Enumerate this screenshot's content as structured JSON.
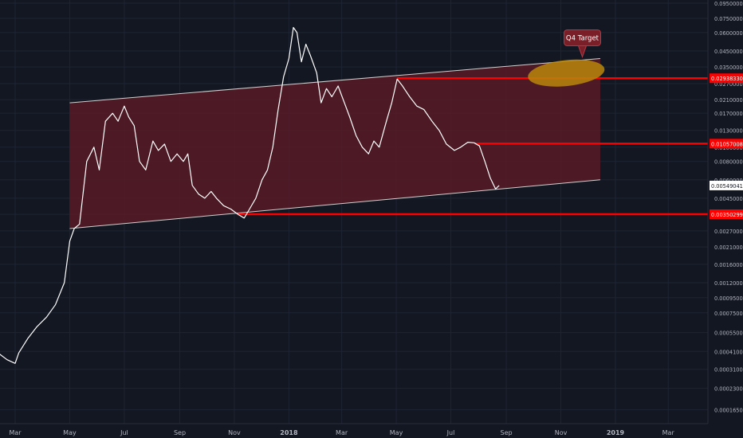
{
  "chart_data": {
    "type": "line",
    "y_scale": "log",
    "ylim": [
      0.00015,
      0.095
    ],
    "grid": true,
    "x_tick_labels": [
      "Mar",
      "May",
      "Jul",
      "Sep",
      "Nov",
      "2018",
      "Mar",
      "May",
      "Jul",
      "Sep",
      "Nov",
      "2019",
      "Mar"
    ],
    "y_tick_labels": [
      "0.09500000",
      "0.07500000",
      "0.06000000",
      "0.04500000",
      "0.03500000",
      "0.02700000",
      "0.02100000",
      "0.01700000",
      "0.01300000",
      "0.01000000",
      "0.00800000",
      "0.00600000",
      "0.00450000",
      "0.00350000",
      "0.00270000",
      "0.00210000",
      "0.00160000",
      "0.00120000",
      "0.00095000",
      "0.00075000",
      "0.00055000",
      "0.00041000",
      "0.00031000",
      "0.00023000",
      "0.00016500"
    ],
    "y_tick_values": [
      0.095,
      0.075,
      0.06,
      0.045,
      0.035,
      0.027,
      0.021,
      0.017,
      0.013,
      0.01,
      0.008,
      0.006,
      0.0045,
      0.0035,
      0.0027,
      0.0021,
      0.0016,
      0.0012,
      0.00095,
      0.00075,
      0.00055,
      0.00041,
      0.00031,
      0.00023,
      0.000165
    ],
    "price": [
      [
        "2017-02-10",
        0.0004
      ],
      [
        "2017-02-20",
        0.00036
      ],
      [
        "2017-03-01",
        0.00034
      ],
      [
        "2017-03-05",
        0.0004
      ],
      [
        "2017-03-15",
        0.0005
      ],
      [
        "2017-03-25",
        0.0006
      ],
      [
        "2017-04-05",
        0.0007
      ],
      [
        "2017-04-15",
        0.00085
      ],
      [
        "2017-04-25",
        0.0012
      ],
      [
        "2017-05-01",
        0.0023
      ],
      [
        "2017-05-06",
        0.0028
      ],
      [
        "2017-05-12",
        0.003
      ],
      [
        "2017-05-20",
        0.008
      ],
      [
        "2017-05-28",
        0.01
      ],
      [
        "2017-06-03",
        0.007
      ],
      [
        "2017-06-10",
        0.015
      ],
      [
        "2017-06-18",
        0.017
      ],
      [
        "2017-06-24",
        0.015
      ],
      [
        "2017-07-01",
        0.019
      ],
      [
        "2017-07-06",
        0.016
      ],
      [
        "2017-07-12",
        0.014
      ],
      [
        "2017-07-18",
        0.008
      ],
      [
        "2017-07-25",
        0.007
      ],
      [
        "2017-08-02",
        0.011
      ],
      [
        "2017-08-08",
        0.0095
      ],
      [
        "2017-08-15",
        0.0105
      ],
      [
        "2017-08-22",
        0.008
      ],
      [
        "2017-08-29",
        0.009
      ],
      [
        "2017-09-05",
        0.008
      ],
      [
        "2017-09-10",
        0.009
      ],
      [
        "2017-09-15",
        0.0055
      ],
      [
        "2017-09-22",
        0.0048
      ],
      [
        "2017-09-29",
        0.0045
      ],
      [
        "2017-10-06",
        0.005
      ],
      [
        "2017-10-12",
        0.0045
      ],
      [
        "2017-10-20",
        0.004
      ],
      [
        "2017-10-28",
        0.0038
      ],
      [
        "2017-11-05",
        0.0035
      ],
      [
        "2017-11-12",
        0.0033
      ],
      [
        "2017-11-18",
        0.0038
      ],
      [
        "2017-11-25",
        0.0045
      ],
      [
        "2017-12-02",
        0.006
      ],
      [
        "2017-12-08",
        0.007
      ],
      [
        "2017-12-14",
        0.01
      ],
      [
        "2017-12-20",
        0.018
      ],
      [
        "2017-12-26",
        0.03
      ],
      [
        "2018-01-01",
        0.04
      ],
      [
        "2018-01-06",
        0.065
      ],
      [
        "2018-01-10",
        0.06
      ],
      [
        "2018-01-15",
        0.038
      ],
      [
        "2018-01-20",
        0.05
      ],
      [
        "2018-01-25",
        0.042
      ],
      [
        "2018-02-01",
        0.032
      ],
      [
        "2018-02-06",
        0.02
      ],
      [
        "2018-02-12",
        0.025
      ],
      [
        "2018-02-18",
        0.022
      ],
      [
        "2018-02-25",
        0.026
      ],
      [
        "2018-03-04",
        0.02
      ],
      [
        "2018-03-10",
        0.016
      ],
      [
        "2018-03-17",
        0.012
      ],
      [
        "2018-03-24",
        0.01
      ],
      [
        "2018-03-31",
        0.009
      ],
      [
        "2018-04-06",
        0.011
      ],
      [
        "2018-04-12",
        0.01
      ],
      [
        "2018-04-20",
        0.015
      ],
      [
        "2018-04-26",
        0.02
      ],
      [
        "2018-05-02",
        0.029
      ],
      [
        "2018-05-08",
        0.026
      ],
      [
        "2018-05-16",
        0.022
      ],
      [
        "2018-05-24",
        0.019
      ],
      [
        "2018-06-01",
        0.018
      ],
      [
        "2018-06-10",
        0.015
      ],
      [
        "2018-06-18",
        0.013
      ],
      [
        "2018-06-26",
        0.0105
      ],
      [
        "2018-07-05",
        0.0095
      ],
      [
        "2018-07-12",
        0.01
      ],
      [
        "2018-07-20",
        0.0108
      ],
      [
        "2018-07-27",
        0.0107
      ],
      [
        "2018-08-02",
        0.0102
      ],
      [
        "2018-08-08",
        0.008
      ],
      [
        "2018-08-14",
        0.0062
      ],
      [
        "2018-08-20",
        0.0052
      ],
      [
        "2018-08-24",
        0.00549
      ]
    ],
    "channel": {
      "upper": [
        [
          "2017-05-01",
          0.02
        ],
        [
          "2018-12-15",
          0.04
        ]
      ],
      "lower": [
        [
          "2017-05-01",
          0.0028
        ],
        [
          "2018-12-15",
          0.006
        ]
      ]
    },
    "levels": [
      {
        "value": 0.0293833,
        "label": "0.02938330",
        "from": "2018-05-02"
      },
      {
        "value": 0.01057008,
        "label": "0.01057008",
        "from": "2018-07-28"
      },
      {
        "value": 0.00350299,
        "label": "0.00350299",
        "from": "2017-11-05"
      }
    ],
    "current_price": {
      "value": 0.00549041,
      "label": "0.00549041"
    },
    "target_zone": {
      "x_from": "2018-09-25",
      "x_to": "2018-12-20",
      "y_low": 0.026,
      "y_high": 0.039
    },
    "annotation": {
      "text": "Q4 Target",
      "x": "2018-11-25",
      "y": 0.04
    },
    "colors": {
      "background": "#131722",
      "grid": "#1e2433",
      "axis_text": "#b2b5be",
      "line": "#ffffff",
      "channel_fill": "#5b1a25",
      "channel_line": "#d0d0d0",
      "level": "#ff0000",
      "target": "#b8860b",
      "callout": "#7a1f28"
    }
  }
}
